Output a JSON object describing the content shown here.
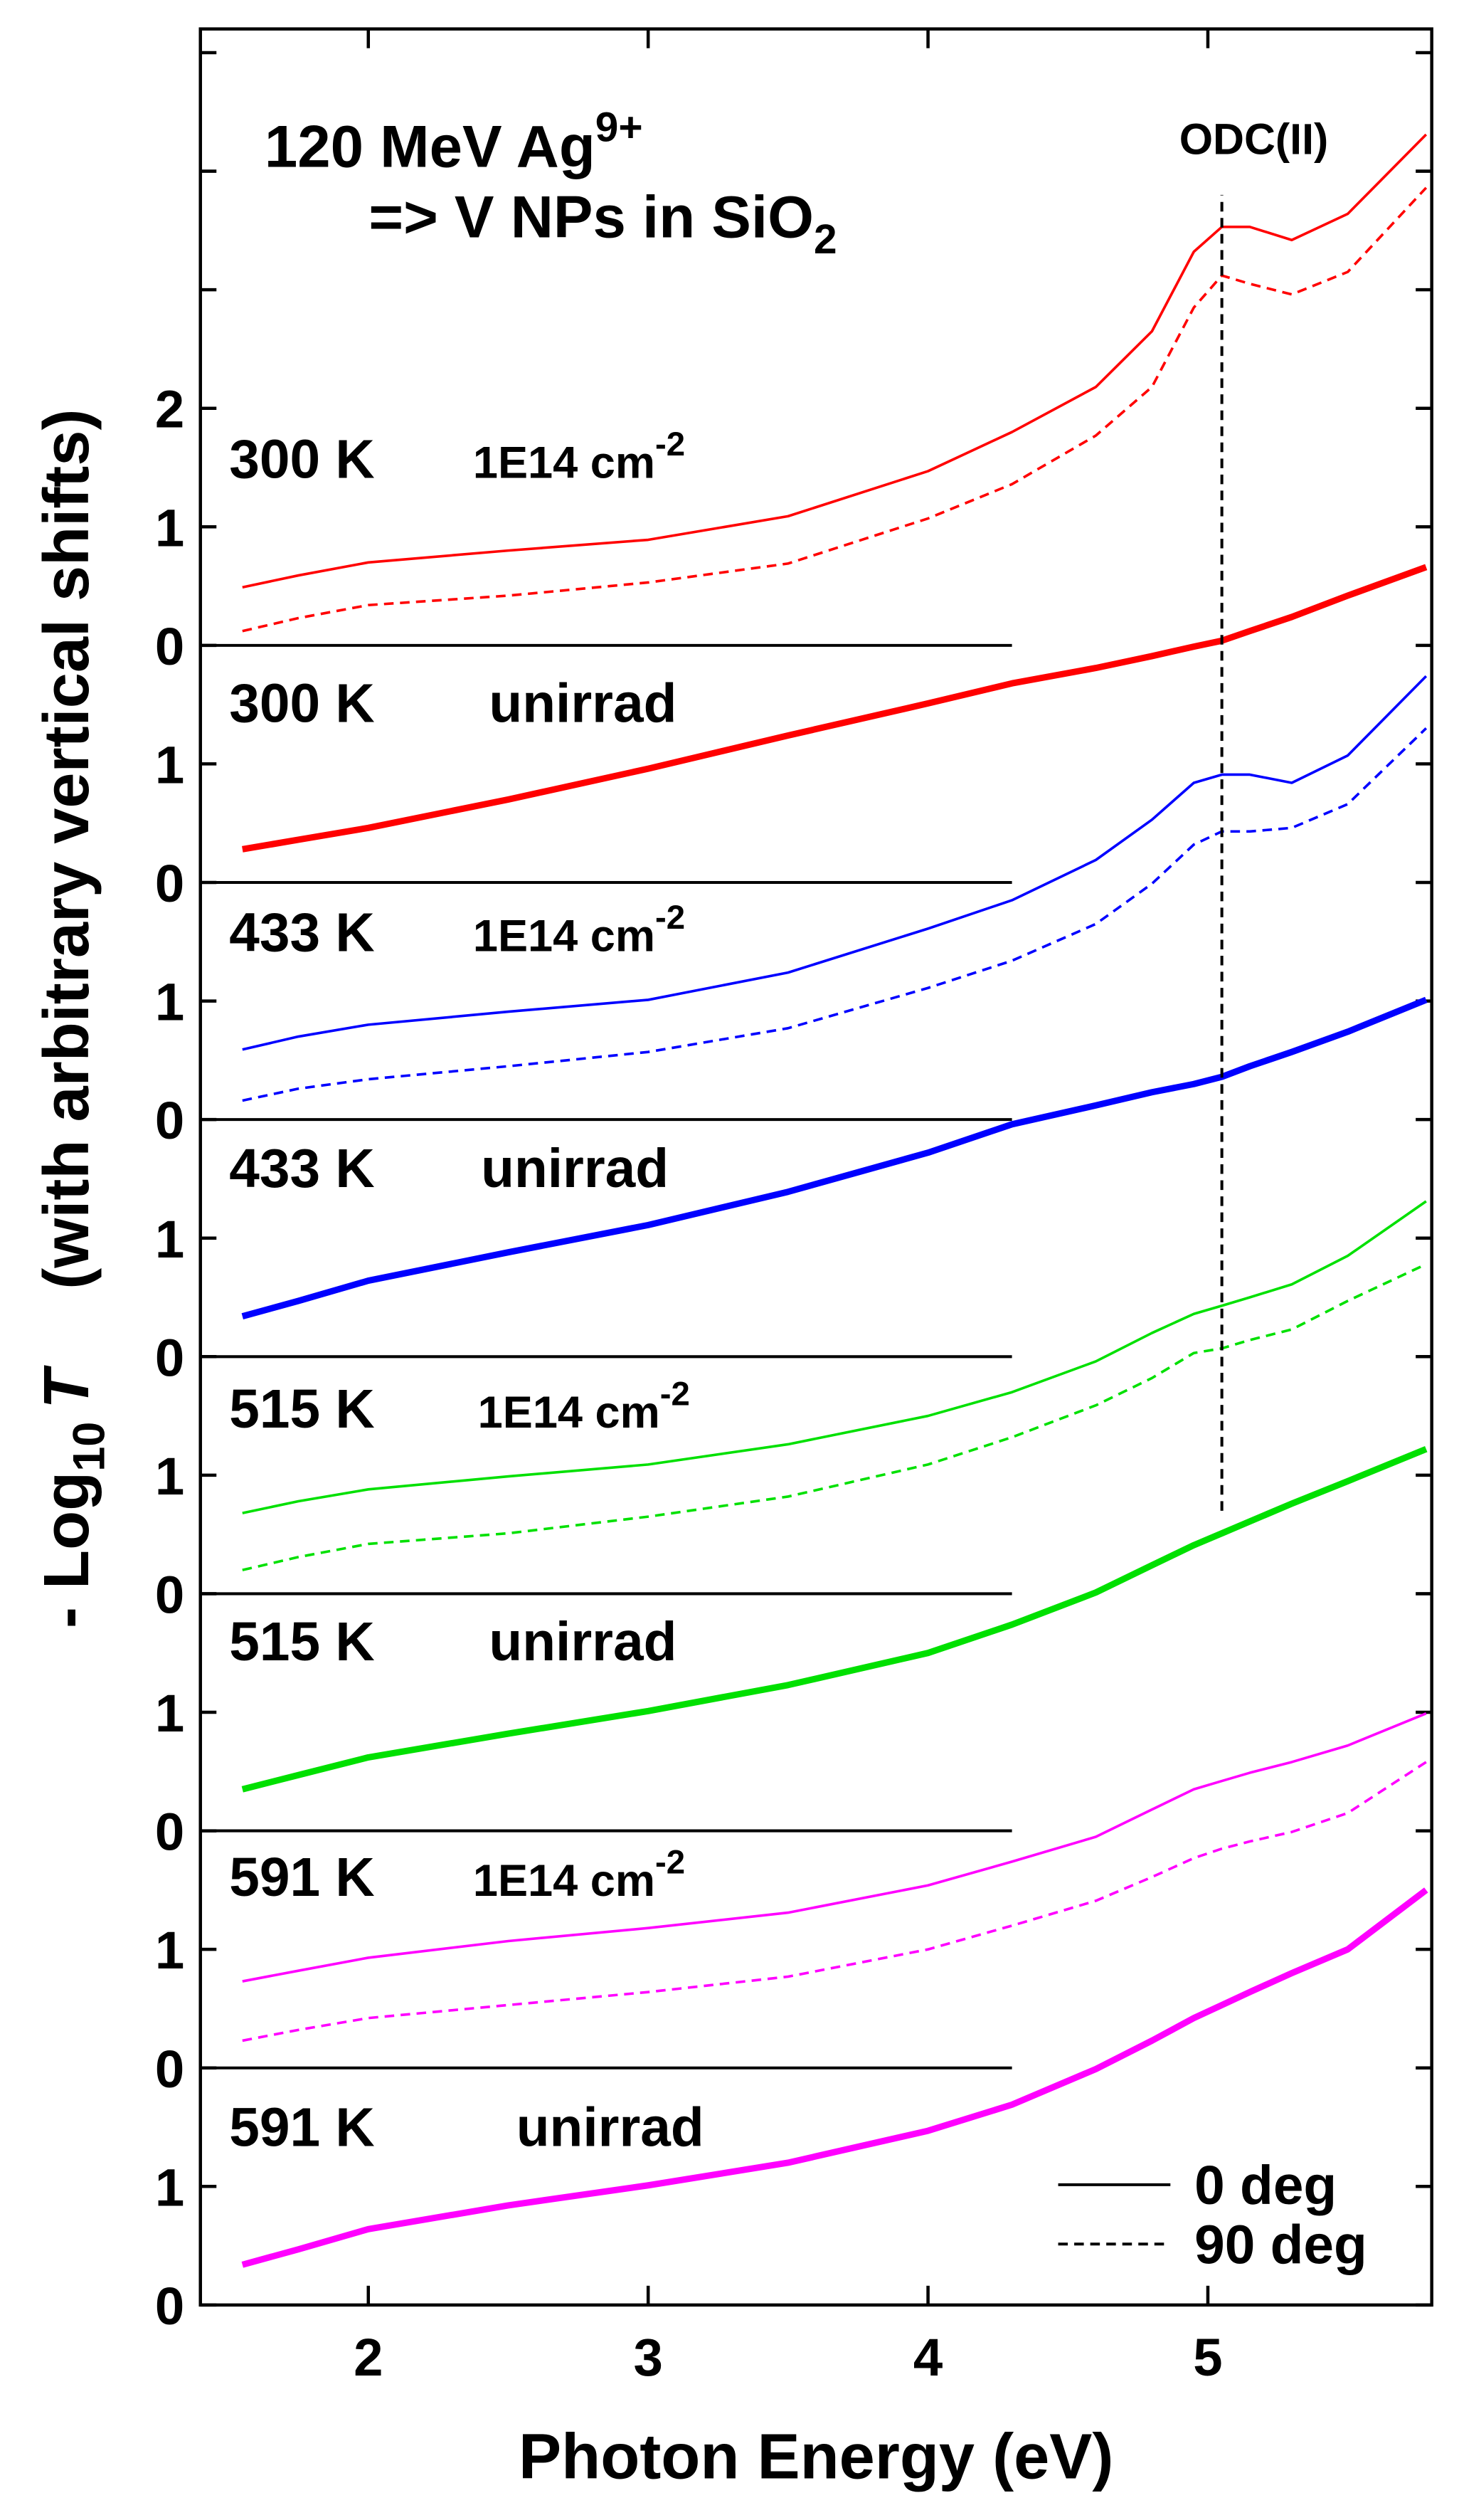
{
  "chart_data": {
    "type": "line",
    "xlabel": "Photon Energy (eV)",
    "ylabel": {
      "main": "- Log",
      "sub": "10",
      "var": "T",
      "note": "(with arbitrary vertical shifts)"
    },
    "title": {
      "line1": "120 MeV Ag",
      "line1_sup": "9+",
      "line2": "=> V NPs in SiO",
      "line2_sub": "2"
    },
    "odc": {
      "label": "ODC(II)",
      "x": 5.05,
      "y": [
        6.7,
        17.8
      ]
    },
    "panels": [
      {
        "temp": "300 K",
        "note": "1E14 cm",
        "note_sup": "-2"
      },
      {
        "temp": "300 K",
        "note": "unirrad"
      },
      {
        "temp": "433 K",
        "note": "1E14 cm",
        "note_sup": "-2"
      },
      {
        "temp": "433 K",
        "note": "unirrad"
      },
      {
        "temp": "515 K",
        "note": "1E14 cm",
        "note_sup": "-2"
      },
      {
        "temp": "515 K",
        "note": "unirrad"
      },
      {
        "temp": "591 K",
        "note": "1E14 cm",
        "note_sup": "-2"
      },
      {
        "temp": "591 K",
        "note": "unirrad"
      }
    ],
    "legend": [
      {
        "label": "0 deg",
        "dash": "solid"
      },
      {
        "label": "90 deg",
        "dash": "dashed"
      }
    ],
    "xlim": [
      1.4,
      5.8
    ],
    "xticks": [
      2,
      3,
      4,
      5
    ],
    "ylim": [
      0,
      19.2
    ],
    "yticks": [
      {
        "value": 0,
        "label": "0"
      },
      {
        "value": 1,
        "label": "1"
      },
      {
        "value": 2,
        "label": "0"
      },
      {
        "value": 3,
        "label": "1"
      },
      {
        "value": 4,
        "label": "0"
      },
      {
        "value": 5,
        "label": "1"
      },
      {
        "value": 6,
        "label": "0"
      },
      {
        "value": 7,
        "label": "1"
      },
      {
        "value": 8,
        "label": "0"
      },
      {
        "value": 9,
        "label": "1"
      },
      {
        "value": 10,
        "label": "0"
      },
      {
        "value": 11,
        "label": "1"
      },
      {
        "value": 12,
        "label": "0"
      },
      {
        "value": 13,
        "label": "1"
      },
      {
        "value": 14,
        "label": "0"
      },
      {
        "value": 15,
        "label": "1"
      },
      {
        "value": 16,
        "label": "2"
      },
      {
        "value": 17,
        "label": null
      },
      {
        "value": 18,
        "label": null
      },
      {
        "value": 19,
        "label": null
      }
    ],
    "baselines": [
      2,
      4,
      6,
      8,
      10,
      12,
      14
    ],
    "baseline_end": 4.3,
    "x": [
      1.55,
      1.75,
      2.0,
      2.5,
      3.0,
      3.5,
      4.0,
      4.3,
      4.6,
      4.8,
      4.95,
      5.05,
      5.15,
      5.3,
      5.5,
      5.78
    ],
    "series": [
      {
        "color": "#ff0000",
        "dash": "solid",
        "width": "thin",
        "values": [
          14.49,
          14.59,
          14.7,
          14.8,
          14.89,
          15.09,
          15.47,
          15.8,
          16.18,
          16.65,
          17.32,
          17.53,
          17.53,
          17.42,
          17.64,
          18.31
        ]
      },
      {
        "color": "#ff0000",
        "dash": "dashed",
        "width": "thin",
        "values": [
          14.12,
          14.23,
          14.34,
          14.42,
          14.53,
          14.69,
          15.07,
          15.36,
          15.77,
          16.18,
          16.85,
          17.12,
          17.05,
          16.96,
          17.15,
          17.86
        ]
      },
      {
        "color": "#ff0000",
        "dash": "solid",
        "width": "thick",
        "values": [
          12.28,
          12.36,
          12.46,
          12.7,
          12.96,
          13.24,
          13.51,
          13.68,
          13.81,
          13.91,
          13.99,
          14.04,
          14.12,
          14.24,
          14.42,
          14.66
        ]
      },
      {
        "color": "#0000ff",
        "dash": "solid",
        "width": "thin",
        "values": [
          10.59,
          10.7,
          10.8,
          10.91,
          11.01,
          11.24,
          11.61,
          11.85,
          12.19,
          12.53,
          12.84,
          12.91,
          12.91,
          12.84,
          13.07,
          13.74
        ]
      },
      {
        "color": "#0000ff",
        "dash": "dashed",
        "width": "thin",
        "values": [
          10.16,
          10.26,
          10.34,
          10.45,
          10.57,
          10.77,
          11.11,
          11.34,
          11.65,
          11.99,
          12.32,
          12.43,
          12.43,
          12.46,
          12.66,
          13.3
        ]
      },
      {
        "color": "#0000ff",
        "dash": "solid",
        "width": "thick",
        "values": [
          8.34,
          8.47,
          8.64,
          8.88,
          9.11,
          9.39,
          9.72,
          9.96,
          10.12,
          10.23,
          10.3,
          10.36,
          10.45,
          10.57,
          10.74,
          11.01
        ]
      },
      {
        "color": "#00e000",
        "dash": "solid",
        "width": "thin",
        "values": [
          6.68,
          6.78,
          6.88,
          6.99,
          7.09,
          7.26,
          7.5,
          7.7,
          7.96,
          8.2,
          8.36,
          8.43,
          8.5,
          8.61,
          8.85,
          9.31
        ]
      },
      {
        "color": "#00e000",
        "dash": "dashed",
        "width": "thin",
        "values": [
          6.2,
          6.31,
          6.42,
          6.51,
          6.65,
          6.82,
          7.09,
          7.32,
          7.59,
          7.82,
          8.03,
          8.07,
          8.14,
          8.23,
          8.47,
          8.78
        ]
      },
      {
        "color": "#00e000",
        "dash": "solid",
        "width": "thick",
        "values": [
          4.35,
          4.47,
          4.62,
          4.82,
          5.01,
          5.23,
          5.5,
          5.74,
          6.01,
          6.24,
          6.41,
          6.51,
          6.61,
          6.76,
          6.95,
          7.22
        ]
      },
      {
        "color": "#ff00ff",
        "dash": "solid",
        "width": "thin",
        "values": [
          2.73,
          2.82,
          2.93,
          3.07,
          3.18,
          3.31,
          3.54,
          3.74,
          3.95,
          4.18,
          4.35,
          4.42,
          4.49,
          4.58,
          4.72,
          4.99
        ]
      },
      {
        "color": "#ff00ff",
        "dash": "dashed",
        "width": "thin",
        "values": [
          2.23,
          2.32,
          2.42,
          2.53,
          2.64,
          2.77,
          3.0,
          3.2,
          3.41,
          3.61,
          3.77,
          3.85,
          3.91,
          3.99,
          4.15,
          4.58
        ]
      },
      {
        "color": "#ff00ff",
        "dash": "solid",
        "width": "thick",
        "values": [
          0.34,
          0.47,
          0.64,
          0.84,
          1.01,
          1.2,
          1.47,
          1.69,
          1.99,
          2.23,
          2.42,
          2.53,
          2.64,
          2.8,
          3.0,
          3.5
        ]
      }
    ]
  }
}
